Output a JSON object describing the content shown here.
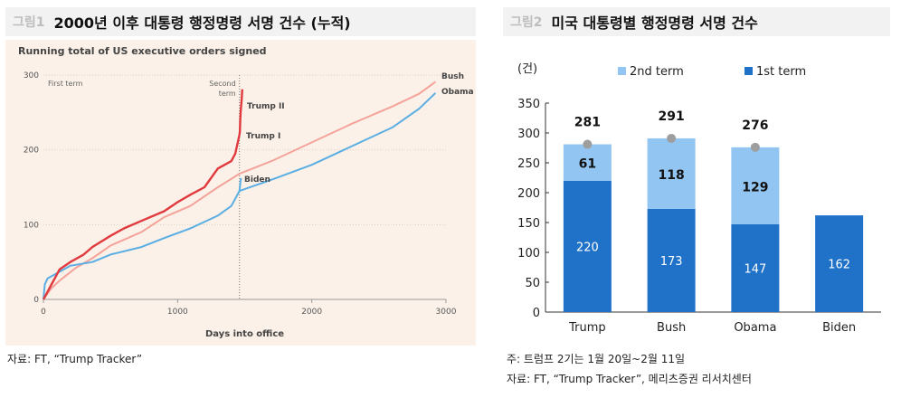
{
  "left_panel": {
    "figure_label": "그림1",
    "title": "2000년 이후 대통령 행정명령 서명 건수 (누적)",
    "source": "자료: FT, “Trump Tracker”"
  },
  "right_panel": {
    "figure_label": "그림2",
    "title": "미국 대통령별 행정명령 서명 건수",
    "note": "주: 트럼프 2기는 1월 20일~2월 11일",
    "source": "자료: FT, “Trump Tracker”, 메리츠증권 리서치센터"
  },
  "colors": {
    "trump": "#e0393e",
    "bush": "#f4a39a",
    "obama": "#5aaee3",
    "biden": "#5aaee3",
    "first_term": "#1f72c7",
    "second_term": "#92c5f1",
    "marker": "#9e9e9e",
    "left_bg": "#fbf1e8"
  },
  "chart_data": [
    {
      "type": "line",
      "title": "Running total of US executive orders signed",
      "xlabel": "Days into office",
      "ylabel": "",
      "xlim": [
        0,
        3000
      ],
      "ylim": [
        0,
        300
      ],
      "x_ticks": [
        "0",
        "1000",
        "2000",
        "3000"
      ],
      "y_ticks": [
        "0",
        "100",
        "200",
        "300"
      ],
      "annotations": [
        "First term",
        "Second term"
      ],
      "term_boundary_day": 1461,
      "series": [
        {
          "name": "Bush",
          "label": "Bush",
          "x": [
            0,
            60,
            120,
            240,
            365,
            500,
            730,
            900,
            1095,
            1300,
            1461,
            1700,
            2000,
            2300,
            2600,
            2800,
            2922
          ],
          "y": [
            0,
            15,
            25,
            42,
            55,
            72,
            90,
            110,
            125,
            150,
            168,
            185,
            210,
            235,
            258,
            275,
            291
          ]
        },
        {
          "name": "Obama",
          "label": "Obama",
          "x": [
            0,
            10,
            30,
            100,
            200,
            365,
            500,
            730,
            900,
            1095,
            1300,
            1400,
            1461,
            1700,
            2000,
            2300,
            2600,
            2800,
            2922
          ],
          "y": [
            0,
            20,
            28,
            35,
            45,
            50,
            60,
            70,
            82,
            95,
            112,
            125,
            145,
            160,
            180,
            205,
            230,
            255,
            276
          ]
        },
        {
          "name": "Trump I",
          "label": "Trump I",
          "x": [
            0,
            30,
            60,
            90,
            120,
            200,
            300,
            365,
            500,
            600,
            730,
            900,
            1000,
            1095,
            1200,
            1300,
            1350,
            1400,
            1430,
            1461
          ],
          "y": [
            0,
            10,
            20,
            30,
            40,
            50,
            60,
            70,
            85,
            95,
            105,
            118,
            130,
            140,
            150,
            175,
            180,
            185,
            195,
            220
          ]
        },
        {
          "name": "Trump II",
          "label": "Trump II",
          "x": [
            1461,
            1464,
            1467,
            1470,
            1473,
            1475,
            1478,
            1482
          ],
          "y": [
            220,
            225,
            240,
            250,
            258,
            262,
            268,
            281
          ]
        },
        {
          "name": "Biden",
          "label": "Biden",
          "x": [
            1461,
            1464,
            1467,
            1470,
            1475
          ],
          "y": [
            145,
            150,
            155,
            160,
            162
          ]
        }
      ]
    },
    {
      "type": "bar",
      "stacked": true,
      "unit_label": "(건)",
      "categories": [
        "Trump",
        "Bush",
        "Obama",
        "Biden"
      ],
      "ylim": [
        0,
        350
      ],
      "y_ticks": [
        "0",
        "50",
        "100",
        "150",
        "200",
        "250",
        "300",
        "350"
      ],
      "legend": [
        "2nd term",
        "1st term"
      ],
      "series": [
        {
          "name": "1st term",
          "values": [
            220,
            173,
            147,
            162
          ],
          "value_labels": [
            "220",
            "173",
            "147",
            "162"
          ]
        },
        {
          "name": "2nd term",
          "values": [
            61,
            118,
            129,
            null
          ],
          "value_labels": [
            "61",
            "118",
            "129",
            ""
          ]
        }
      ],
      "totals": [
        281,
        291,
        276,
        null
      ],
      "total_labels": [
        "281",
        "291",
        "276",
        ""
      ]
    }
  ]
}
